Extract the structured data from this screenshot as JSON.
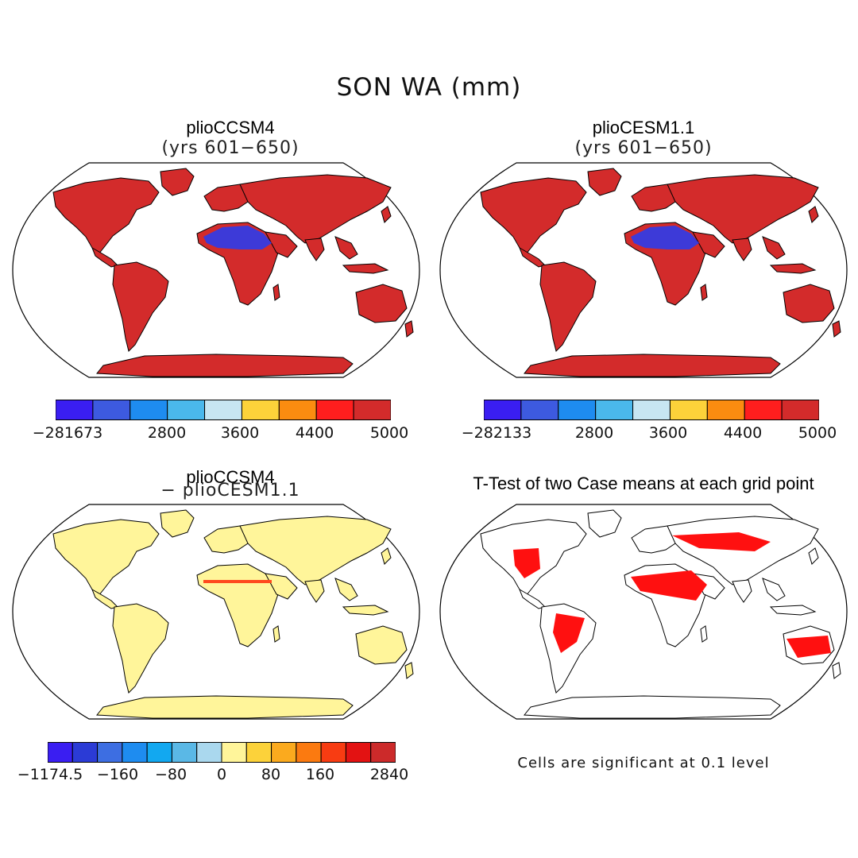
{
  "figure_title": "SON WA (mm)",
  "panels": [
    {
      "title": "plioCCSM4",
      "subtitle": "(yrs 601−650)",
      "colorbar": {
        "colors": [
          "#3a1ef2",
          "#3d5ae0",
          "#1e8cf0",
          "#4ab8ec",
          "#c7e6f2",
          "#fcd23a",
          "#fb8c10",
          "#ff1e1e",
          "#d32b2b"
        ],
        "labels": [
          "−281673",
          "2800",
          "3600",
          "4400",
          "5000"
        ]
      }
    },
    {
      "title": "plioCESM1.1",
      "subtitle": "(yrs 601−650)",
      "colorbar": {
        "colors": [
          "#3a1ef2",
          "#3d5ae0",
          "#1e8cf0",
          "#4ab8ec",
          "#c7e6f2",
          "#fcd23a",
          "#fb8c10",
          "#ff1e1e",
          "#d32b2b"
        ],
        "labels": [
          "−282133",
          "2800",
          "3600",
          "4400",
          "5000"
        ]
      }
    },
    {
      "title": "plioCCSM4",
      "subtitle": "− plioCESM1.1",
      "colorbar": {
        "colors": [
          "#3a1ef2",
          "#2b3bd6",
          "#3d6ee2",
          "#1e8cf0",
          "#12a8f0",
          "#5ab8e6",
          "#aad8ee",
          "#fff59a",
          "#fcd23a",
          "#fbaa1e",
          "#fb7a10",
          "#f83c12",
          "#e31212",
          "#cc2a2a"
        ],
        "labels": [
          "−1174.5",
          "−160",
          "−80",
          "0",
          "80",
          "160",
          "2840"
        ]
      }
    },
    {
      "title": "T-Test of two Case means at each grid point",
      "note": "Cells are significant at 0.1 level"
    }
  ],
  "map_fill": {
    "panel1": "#d32b2b",
    "panel2": "#d32b2b",
    "panel3": "#fff59a",
    "panel4": "#ff1010"
  }
}
